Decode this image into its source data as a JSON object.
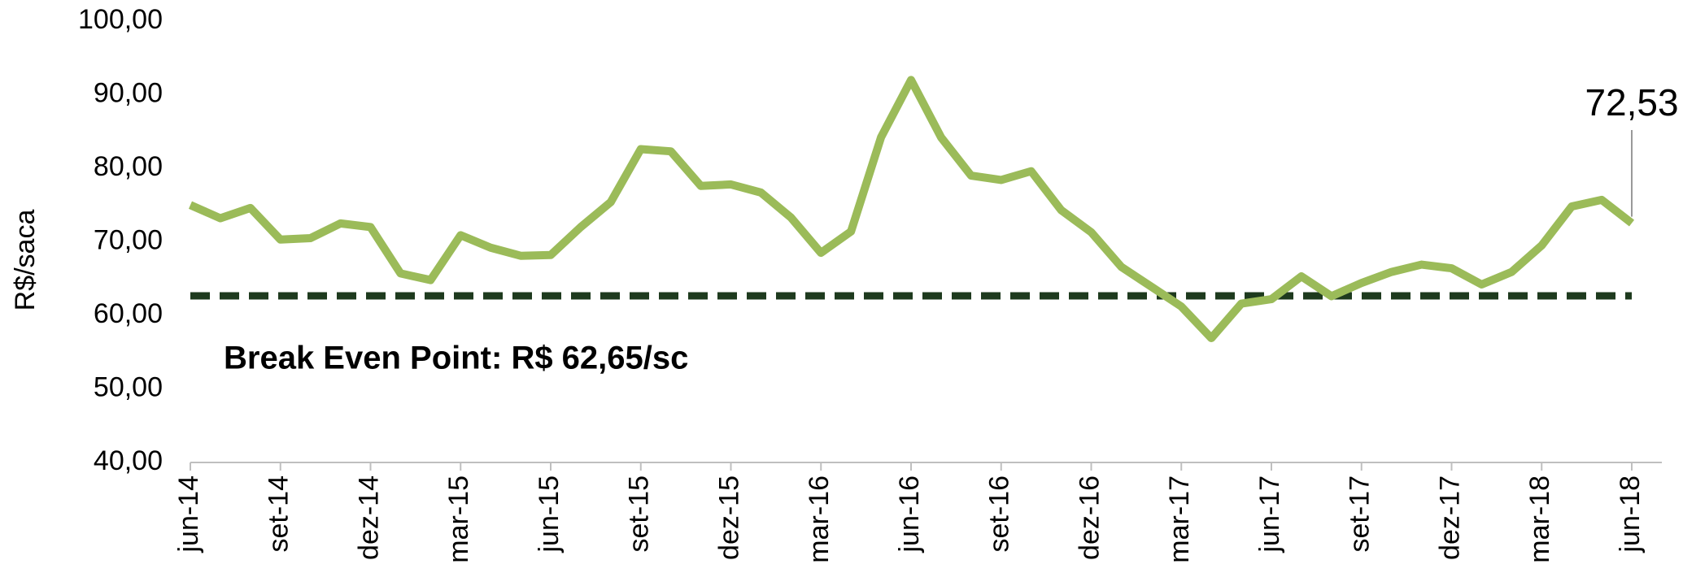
{
  "chart_data": {
    "type": "line",
    "y_label": "R$/saca",
    "categories": [
      "jun-14",
      null,
      null,
      "set-14",
      null,
      null,
      "dez-14",
      null,
      null,
      "mar-15",
      null,
      null,
      "jun-15",
      null,
      null,
      "set-15",
      null,
      null,
      "dez-15",
      null,
      null,
      "mar-16",
      null,
      null,
      "jun-16",
      null,
      null,
      "set-16",
      null,
      null,
      "dez-16",
      null,
      null,
      "mar-17",
      null,
      null,
      "jun-17",
      null,
      null,
      "set-17",
      null,
      null,
      "dez-17",
      null,
      null,
      "mar-18",
      null,
      null,
      "jun-18"
    ],
    "series": [
      {
        "name": "R$/saca",
        "color": "#9bbb59",
        "values": [
          75,
          73.2,
          74.6,
          70.3,
          70.5,
          72.5,
          72,
          65.7,
          64.8,
          70.9,
          69.2,
          68.1,
          68.2,
          72,
          75.4,
          82.6,
          82.3,
          77.6,
          77.8,
          76.7,
          73.3,
          68.5,
          71.4,
          84.2,
          92,
          84.2,
          79,
          78.4,
          79.6,
          74.3,
          71.3,
          66.6,
          63.9,
          61.2,
          56.9,
          61.6,
          62.2,
          65.3,
          62.6,
          64.4,
          65.9,
          66.9,
          66.4,
          64.2,
          65.9,
          69.5,
          74.8,
          75.7,
          72.53
        ],
        "value_labels": [
          null,
          null,
          null,
          null,
          null,
          null,
          null,
          null,
          null,
          null,
          null,
          null,
          null,
          null,
          null,
          null,
          null,
          null,
          null,
          null,
          null,
          null,
          null,
          null,
          null,
          null,
          null,
          null,
          null,
          null,
          null,
          null,
          null,
          null,
          null,
          null,
          null,
          null,
          null,
          null,
          null,
          null,
          null,
          null,
          null,
          null,
          null,
          null,
          "72,53"
        ]
      }
    ],
    "reference_line": {
      "value": 62.65,
      "color": "#1e3a1e",
      "label": "Break Even Point: R$ 62,65/sc"
    },
    "ylim": [
      40,
      100
    ],
    "yticks": [
      {
        "value": 40,
        "label": "40,00"
      },
      {
        "value": 50,
        "label": "50,00"
      },
      {
        "value": 60,
        "label": "60,00"
      },
      {
        "value": 70,
        "label": "70,00"
      },
      {
        "value": 80,
        "label": "80,00"
      },
      {
        "value": 90,
        "label": "90,00"
      },
      {
        "value": 100,
        "label": "100,00"
      }
    ],
    "grid": false
  }
}
